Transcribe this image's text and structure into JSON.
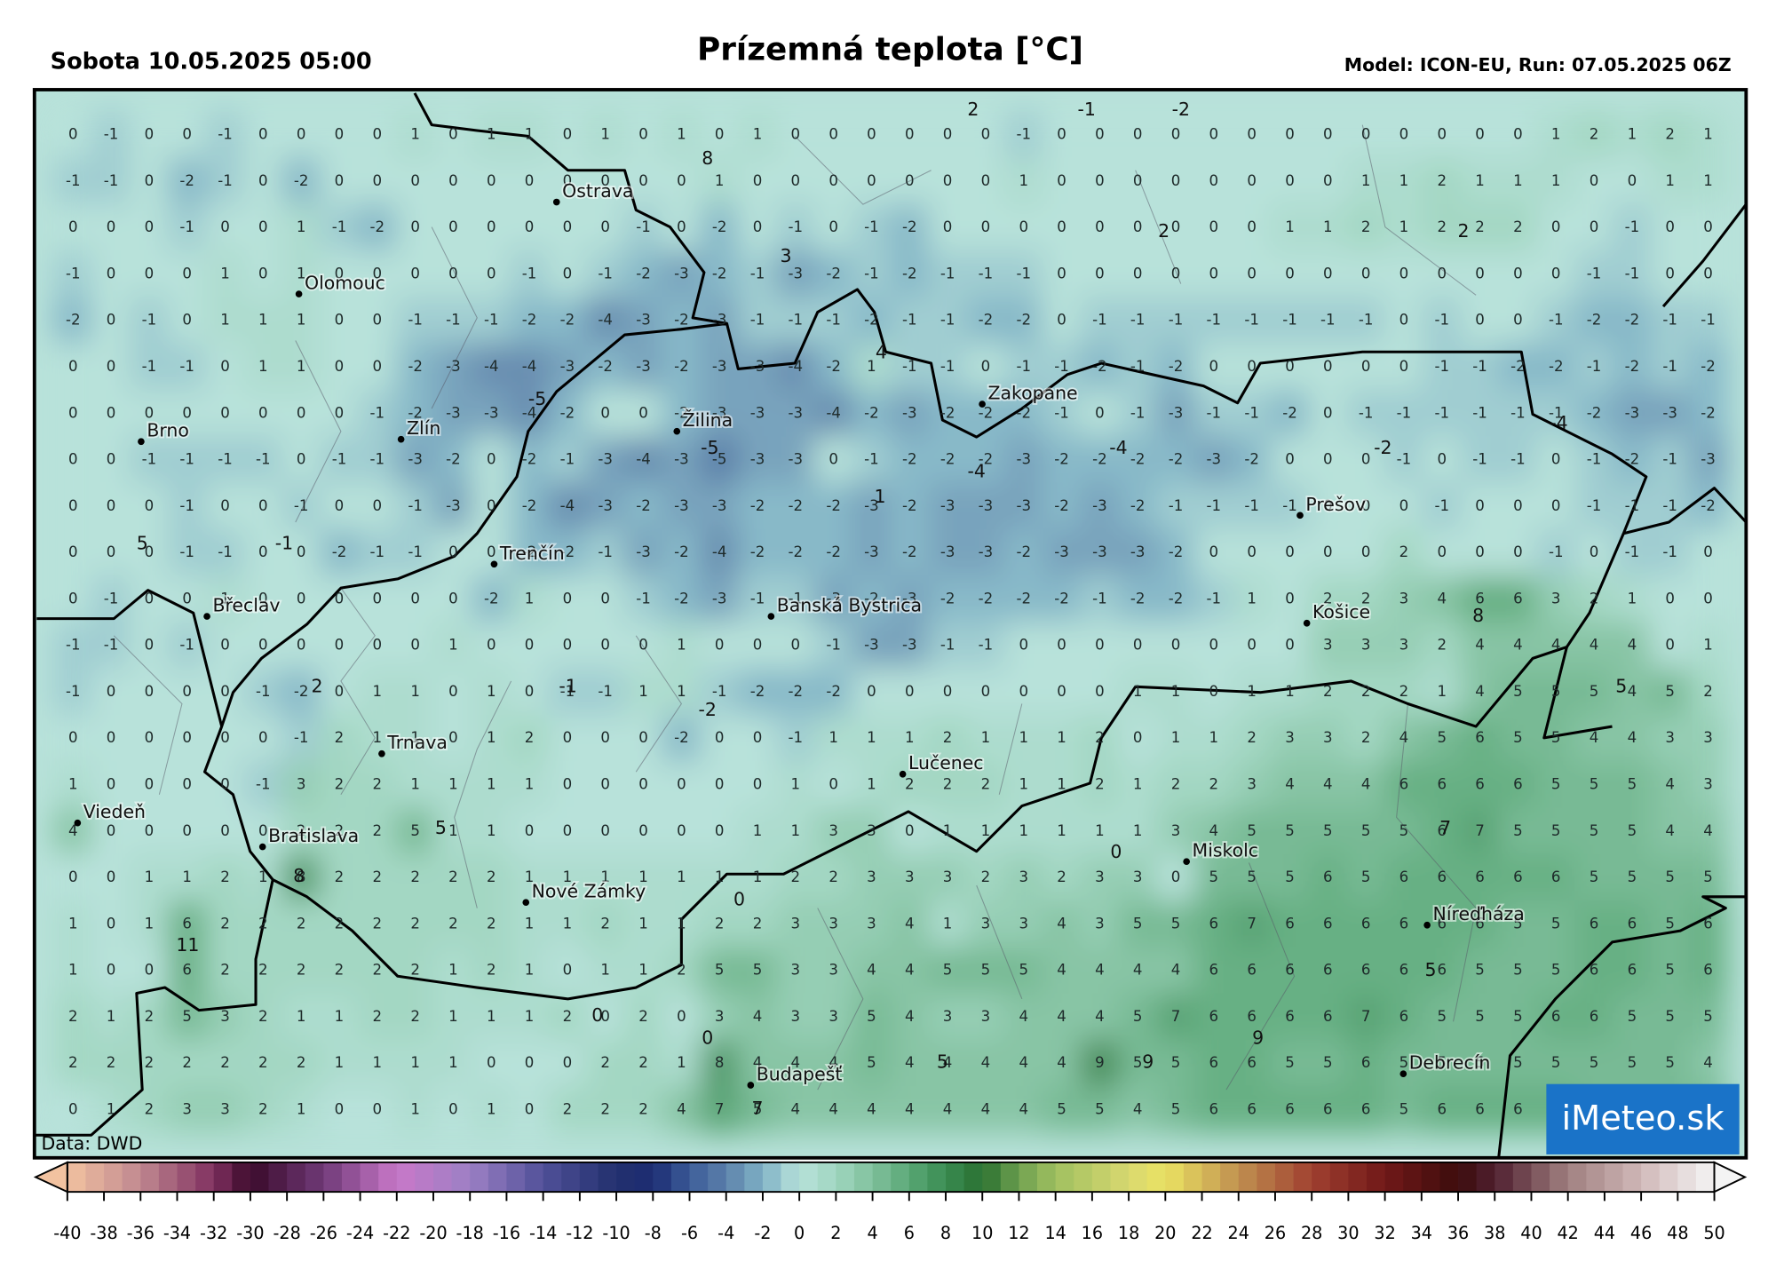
{
  "header": {
    "date": "Sobota 10.05.2025 05:00",
    "title": "Prízemná teplota [°C]",
    "model": "Model: ICON-EU, Run: 07.05.2025 06Z"
  },
  "map": {
    "grid": [
      [
        0,
        -1,
        0,
        0,
        -1,
        0,
        0,
        0,
        0,
        1,
        0,
        1,
        1,
        0,
        1,
        0,
        1,
        0,
        1,
        0,
        0,
        0,
        0,
        0,
        0,
        -1,
        0,
        0,
        0,
        0,
        0,
        0,
        0,
        0,
        0,
        0,
        0,
        0,
        0,
        1,
        2,
        1,
        2,
        1
      ],
      [
        -1,
        -1,
        0,
        -2,
        -1,
        0,
        -2,
        0,
        0,
        0,
        0,
        0,
        0,
        0,
        0,
        0,
        0,
        1,
        0,
        0,
        0,
        0,
        0,
        0,
        0,
        1,
        0,
        0,
        0,
        0,
        0,
        0,
        0,
        0,
        1,
        1,
        2,
        1,
        1,
        1,
        0,
        0,
        1,
        1
      ],
      [
        0,
        0,
        0,
        -1,
        0,
        0,
        1,
        -1,
        -2,
        0,
        0,
        0,
        0,
        0,
        0,
        -1,
        0,
        -2,
        0,
        -1,
        0,
        -1,
        -2,
        0,
        0,
        0,
        0,
        0,
        0,
        0,
        0,
        0,
        1,
        1,
        2,
        1,
        2,
        2,
        2,
        0,
        0,
        -1,
        0,
        0
      ],
      [
        -1,
        0,
        0,
        0,
        1,
        0,
        1,
        0,
        0,
        0,
        0,
        0,
        -1,
        0,
        -1,
        -2,
        -3,
        -2,
        -1,
        -3,
        -2,
        -1,
        -2,
        -1,
        -1,
        -1,
        0,
        0,
        0,
        0,
        0,
        0,
        0,
        0,
        0,
        0,
        0,
        0,
        0,
        0,
        -1,
        -1,
        0,
        0
      ],
      [
        -2,
        0,
        -1,
        0,
        1,
        1,
        1,
        0,
        0,
        -1,
        -1,
        -1,
        -2,
        -2,
        -4,
        -3,
        -2,
        -3,
        -1,
        -1,
        -1,
        -2,
        -1,
        -1,
        -2,
        -2,
        0,
        -1,
        -1,
        -1,
        -1,
        -1,
        -1,
        -1,
        -1,
        0,
        -1,
        0,
        0,
        -1,
        -2,
        -2,
        -1,
        -1
      ],
      [
        0,
        0,
        -1,
        -1,
        0,
        1,
        1,
        0,
        0,
        -2,
        -3,
        -4,
        -4,
        -3,
        -2,
        -3,
        -2,
        -3,
        -3,
        -4,
        -2,
        1,
        -1,
        -1,
        0,
        -1,
        -1,
        -2,
        -1,
        -2,
        0,
        0,
        0,
        0,
        0,
        0,
        -1,
        -1,
        -2,
        -2,
        -1,
        -2,
        -1,
        -2
      ],
      [
        0,
        0,
        0,
        0,
        0,
        0,
        0,
        0,
        -1,
        -2,
        -3,
        -3,
        -4,
        -2,
        0,
        0,
        -2,
        -3,
        -3,
        -3,
        -4,
        -2,
        -3,
        -2,
        -2,
        -2,
        -1,
        0,
        -1,
        -3,
        -1,
        -1,
        -2,
        0,
        -1,
        -1,
        -1,
        -1,
        -1,
        -1,
        -2,
        -3,
        -3,
        -2
      ],
      [
        0,
        0,
        -1,
        -1,
        -1,
        -1,
        0,
        -1,
        -1,
        -3,
        -2,
        0,
        -2,
        -1,
        -3,
        -4,
        -3,
        -5,
        -3,
        -3,
        0,
        -1,
        -2,
        -2,
        -2,
        -3,
        -2,
        -2,
        -2,
        -2,
        -3,
        -2,
        0,
        0,
        0,
        -1,
        0,
        -1,
        -1,
        0,
        -1,
        -2,
        -1,
        -3
      ],
      [
        0,
        0,
        0,
        -1,
        0,
        0,
        -1,
        0,
        0,
        -1,
        -3,
        0,
        -2,
        -4,
        -3,
        -2,
        -3,
        -3,
        -2,
        -2,
        -2,
        -3,
        -2,
        -3,
        -3,
        -3,
        -2,
        -3,
        -2,
        -1,
        -1,
        -1,
        -1,
        0,
        0,
        0,
        -1,
        0,
        0,
        0,
        -1,
        -1,
        -1,
        -2
      ],
      [
        0,
        0,
        0,
        -1,
        -1,
        0,
        0,
        -2,
        -1,
        -1,
        0,
        0,
        -2,
        -2,
        -1,
        -3,
        -2,
        -4,
        -2,
        -2,
        -2,
        -3,
        -2,
        -3,
        -3,
        -2,
        -3,
        -3,
        -3,
        -2,
        0,
        0,
        0,
        0,
        0,
        2,
        0,
        0,
        0,
        -1,
        0,
        -1,
        -1,
        0
      ],
      [
        0,
        -1,
        0,
        0,
        1,
        0,
        0,
        0,
        0,
        0,
        0,
        -2,
        1,
        0,
        0,
        -1,
        -2,
        -3,
        -1,
        -1,
        -3,
        -2,
        -3,
        -2,
        -2,
        -2,
        -2,
        -1,
        -2,
        -2,
        -1,
        1,
        0,
        2,
        2,
        3,
        4,
        6,
        6,
        3,
        2,
        1,
        0,
        0
      ],
      [
        -1,
        -1,
        0,
        -1,
        0,
        0,
        0,
        0,
        0,
        0,
        1,
        0,
        0,
        0,
        0,
        0,
        1,
        0,
        0,
        0,
        -1,
        -3,
        -3,
        -1,
        -1,
        0,
        0,
        0,
        0,
        0,
        0,
        0,
        0,
        3,
        3,
        3,
        2,
        4,
        4,
        4,
        4,
        4,
        0,
        1
      ],
      [
        -1,
        0,
        0,
        0,
        0,
        -1,
        -2,
        0,
        1,
        1,
        0,
        1,
        0,
        -1,
        -1,
        1,
        1,
        -1,
        -2,
        -2,
        -2,
        0,
        0,
        0,
        0,
        0,
        0,
        0,
        1,
        1,
        0,
        1,
        1,
        2,
        2,
        2,
        1,
        4,
        5,
        5,
        5,
        4,
        5,
        2
      ],
      [
        0,
        0,
        0,
        0,
        0,
        0,
        -1,
        2,
        1,
        1,
        0,
        1,
        2,
        0,
        0,
        0,
        -2,
        0,
        0,
        -1,
        1,
        1,
        1,
        2,
        1,
        1,
        1,
        2,
        0,
        1,
        1,
        2,
        3,
        3,
        2,
        4,
        5,
        6,
        5,
        5,
        4,
        4,
        3,
        3
      ],
      [
        1,
        0,
        0,
        0,
        0,
        -1,
        3,
        2,
        2,
        1,
        1,
        1,
        1,
        0,
        0,
        0,
        0,
        0,
        0,
        1,
        0,
        1,
        2,
        2,
        2,
        1,
        1,
        2,
        1,
        2,
        2,
        3,
        4,
        4,
        4,
        6,
        6,
        6,
        6,
        5,
        5,
        5,
        4,
        3
      ],
      [
        4,
        0,
        0,
        0,
        0,
        0,
        2,
        2,
        2,
        5,
        1,
        1,
        0,
        0,
        0,
        0,
        0,
        0,
        1,
        1,
        3,
        3,
        0,
        1,
        1,
        1,
        1,
        1,
        1,
        3,
        4,
        5,
        5,
        5,
        5,
        5,
        6,
        7,
        5,
        5,
        5,
        5,
        4,
        4
      ],
      [
        0,
        0,
        1,
        1,
        2,
        1,
        8,
        2,
        2,
        2,
        2,
        2,
        1,
        1,
        1,
        1,
        1,
        1,
        1,
        2,
        2,
        3,
        3,
        3,
        2,
        3,
        2,
        3,
        3,
        0,
        5,
        5,
        5,
        6,
        5,
        6,
        6,
        6,
        6,
        6,
        5,
        5,
        5,
        5
      ],
      [
        1,
        0,
        1,
        6,
        2,
        2,
        2,
        2,
        2,
        2,
        2,
        2,
        1,
        1,
        2,
        1,
        1,
        2,
        2,
        3,
        3,
        3,
        4,
        1,
        3,
        3,
        4,
        3,
        5,
        5,
        6,
        7,
        6,
        6,
        6,
        6,
        6,
        6,
        5,
        5,
        6,
        6,
        5,
        6
      ],
      [
        1,
        0,
        0,
        6,
        2,
        2,
        2,
        2,
        2,
        2,
        1,
        2,
        1,
        0,
        1,
        1,
        2,
        5,
        5,
        3,
        3,
        4,
        4,
        5,
        5,
        5,
        4,
        4,
        4,
        4,
        6,
        6,
        6,
        6,
        6,
        6,
        6,
        5,
        5,
        5,
        6,
        6,
        5,
        6
      ],
      [
        2,
        1,
        2,
        5,
        3,
        2,
        1,
        1,
        2,
        2,
        1,
        1,
        1,
        2,
        0,
        2,
        0,
        3,
        4,
        3,
        3,
        5,
        4,
        3,
        3,
        4,
        4,
        4,
        5,
        7,
        6,
        6,
        6,
        6,
        7,
        6,
        5,
        5,
        5,
        6,
        6,
        5,
        5,
        5
      ],
      [
        2,
        2,
        2,
        2,
        2,
        2,
        2,
        1,
        1,
        1,
        1,
        0,
        0,
        0,
        2,
        2,
        1,
        8,
        4,
        4,
        4,
        5,
        4,
        4,
        4,
        4,
        4,
        9,
        5,
        5,
        6,
        6,
        5,
        5,
        6,
        5,
        5,
        5,
        5,
        5,
        5,
        5,
        5,
        4
      ],
      [
        0,
        1,
        2,
        3,
        3,
        2,
        1,
        0,
        0,
        1,
        0,
        1,
        0,
        2,
        2,
        2,
        4,
        7,
        5,
        4,
        4,
        4,
        4,
        4,
        4,
        4,
        5,
        5,
        4,
        5,
        6,
        6,
        6,
        6,
        6,
        5,
        6,
        6,
        6,
        6,
        5,
        5,
        5,
        5
      ]
    ],
    "extrema": [
      8,
      3,
      4,
      -5,
      -5,
      1,
      -4,
      -4,
      -2,
      -4,
      5,
      -1,
      2,
      -1,
      -2,
      2,
      2,
      8,
      5,
      -2,
      -1,
      2,
      5,
      8,
      11,
      7,
      5,
      9,
      9,
      5,
      0,
      0,
      0,
      0,
      7
    ],
    "cities": [
      "Ostrava",
      "Olomouc",
      "Brno",
      "Zlín",
      "Žilina",
      "Zakopane",
      "Trenčín",
      "Prešov",
      "Břeclav",
      "Banská Bystrica",
      "Košice",
      "Trnava",
      "Lučenec",
      "Viedeň",
      "Bratislava",
      "Miskolc",
      "Nové Zámky",
      "Níreďháza",
      "Budapešť",
      "Debrecín"
    ],
    "source": "Data: DWD",
    "logo": "iMeteo.sk"
  },
  "colorbar": {
    "ticks": [
      -40,
      -38,
      -36,
      -34,
      -32,
      -30,
      -28,
      -26,
      -24,
      -22,
      -20,
      -18,
      -16,
      -14,
      -12,
      -10,
      -8,
      -6,
      -4,
      -2,
      0,
      2,
      4,
      6,
      8,
      10,
      12,
      14,
      16,
      18,
      20,
      22,
      24,
      26,
      28,
      30,
      32,
      34,
      36,
      38,
      40,
      42,
      44,
      46,
      48,
      50
    ],
    "colormap": [
      {
        "value": -40,
        "color": "#f2c2a0"
      },
      {
        "value": -36,
        "color": "#c08890"
      },
      {
        "value": -32,
        "color": "#803060"
      },
      {
        "value": -30,
        "color": "#3a0a2a"
      },
      {
        "value": -26,
        "color": "#703a78"
      },
      {
        "value": -22,
        "color": "#c878c8"
      },
      {
        "value": -18,
        "color": "#9c80c4"
      },
      {
        "value": -14,
        "color": "#505098"
      },
      {
        "value": -10,
        "color": "#22306e"
      },
      {
        "value": -8,
        "color": "#1c2c72"
      },
      {
        "value": -6,
        "color": "#3c5c98"
      },
      {
        "value": -4,
        "color": "#5c80aa"
      },
      {
        "value": -2,
        "color": "#80b2c6"
      },
      {
        "value": 0,
        "color": "#b8e2da"
      },
      {
        "value": 2,
        "color": "#a0d6c0"
      },
      {
        "value": 4,
        "color": "#80c09c"
      },
      {
        "value": 6,
        "color": "#5aa876"
      },
      {
        "value": 8,
        "color": "#3a8c52"
      },
      {
        "value": 10,
        "color": "#2a7030"
      },
      {
        "value": 12,
        "color": "#6ea050"
      },
      {
        "value": 14,
        "color": "#a0c060"
      },
      {
        "value": 18,
        "color": "#d8d870"
      },
      {
        "value": 20,
        "color": "#eae262"
      },
      {
        "value": 24,
        "color": "#c09050"
      },
      {
        "value": 28,
        "color": "#a04030"
      },
      {
        "value": 32,
        "color": "#701818"
      },
      {
        "value": 36,
        "color": "#3c0c0c"
      },
      {
        "value": 38,
        "color": "#502030"
      },
      {
        "value": 42,
        "color": "#a08080"
      },
      {
        "value": 46,
        "color": "#d0b8b8"
      },
      {
        "value": 50,
        "color": "#f4f4f4"
      }
    ]
  }
}
